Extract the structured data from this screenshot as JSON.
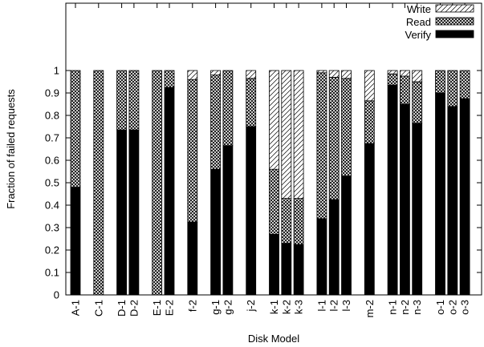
{
  "chart_data": {
    "type": "bar",
    "stacked": true,
    "xlabel": "Disk Model",
    "ylabel": "Fraction of failed requests",
    "ylim": [
      0,
      1.3
    ],
    "yticks": [
      0,
      0.1,
      0.2,
      0.3,
      0.4,
      0.5,
      0.6,
      0.7,
      0.8,
      0.9,
      1
    ],
    "ytick_labels": [
      "0",
      "0.1",
      "0.2",
      "0.3",
      "0.4",
      "0.5",
      "0.6",
      "0.7",
      "0.8",
      "0.9",
      "1"
    ],
    "grid": false,
    "legend_position": "top-right",
    "categories": [
      "A-1",
      "C-1",
      "D-1",
      "D-2",
      "E-1",
      "E-2",
      "f-2",
      "g-1",
      "g-2",
      "j-2",
      "k-1",
      "k-2",
      "k-3",
      "l-1",
      "l-2",
      "l-3",
      "m-2",
      "n-1",
      "n-2",
      "n-3",
      "o-1",
      "o-2",
      "o-3"
    ],
    "groups": [
      [
        0
      ],
      [
        1
      ],
      [
        2,
        3
      ],
      [
        4,
        5
      ],
      [
        6
      ],
      [
        7,
        8
      ],
      [
        9
      ],
      [
        10,
        11,
        12
      ],
      [
        13,
        14,
        15
      ],
      [
        16
      ],
      [
        17,
        18,
        19
      ],
      [
        20,
        21,
        22
      ]
    ],
    "series": [
      {
        "name": "Verify",
        "pattern": "solid",
        "color": "#000000",
        "values": [
          0.48,
          0,
          0.735,
          0.735,
          0,
          0.925,
          0.325,
          0.56,
          0.665,
          0.75,
          0.27,
          0.23,
          0.225,
          0.34,
          0.425,
          0.53,
          0.675,
          0.935,
          0.85,
          0.765,
          0.9,
          0.84,
          0.875
        ]
      },
      {
        "name": "Read",
        "pattern": "crosshatch",
        "color": "#000000",
        "values": [
          0.52,
          1,
          0.265,
          0.265,
          1,
          0.075,
          0.635,
          0.42,
          0.335,
          0.215,
          0.29,
          0.2,
          0.205,
          0.65,
          0.545,
          0.435,
          0.19,
          0.05,
          0.125,
          0.185,
          0.1,
          0.16,
          0.125
        ]
      },
      {
        "name": "Write",
        "pattern": "diagonal",
        "color": "#000000",
        "values": [
          0,
          0,
          0,
          0,
          0,
          0,
          0.04,
          0.02,
          0,
          0.035,
          0.44,
          0.57,
          0.57,
          0.01,
          0.03,
          0.035,
          0.135,
          0.015,
          0.025,
          0.05,
          0,
          0,
          0
        ]
      }
    ],
    "legend_order": [
      "Write",
      "Read",
      "Verify"
    ]
  }
}
